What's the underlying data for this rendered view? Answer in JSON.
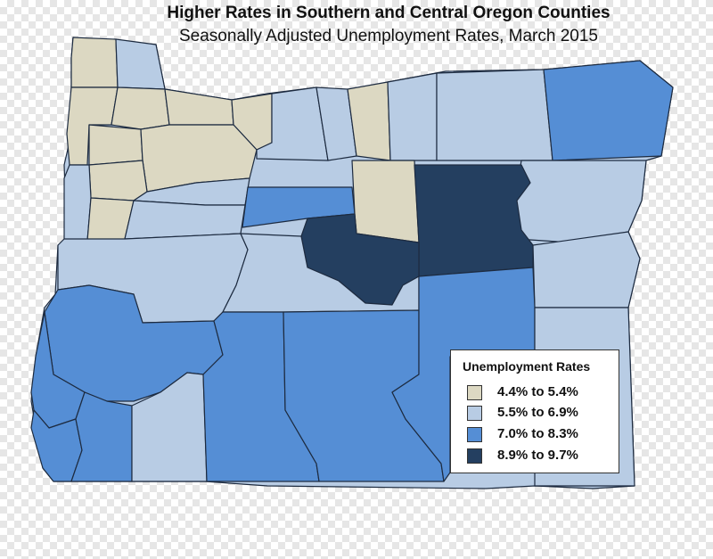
{
  "title": "Higher Rates in Southern and Central Oregon Counties",
  "subtitle": "Seasonally Adjusted Unemployment Rates, March 2015",
  "legend": {
    "title": "Unemployment Rates",
    "items": [
      {
        "label": "4.4% to 5.4%",
        "color": "#dcd8c2"
      },
      {
        "label": "5.5% to 6.9%",
        "color": "#b8cce4"
      },
      {
        "label": "7.0% to 8.3%",
        "color": "#558ed5"
      },
      {
        "label": "8.9% to 9.7%",
        "color": "#243f60"
      }
    ]
  },
  "colors": {
    "tan": "#dcd8c2",
    "light": "#b8cce4",
    "mid": "#558ed5",
    "dark": "#243f60"
  }
}
